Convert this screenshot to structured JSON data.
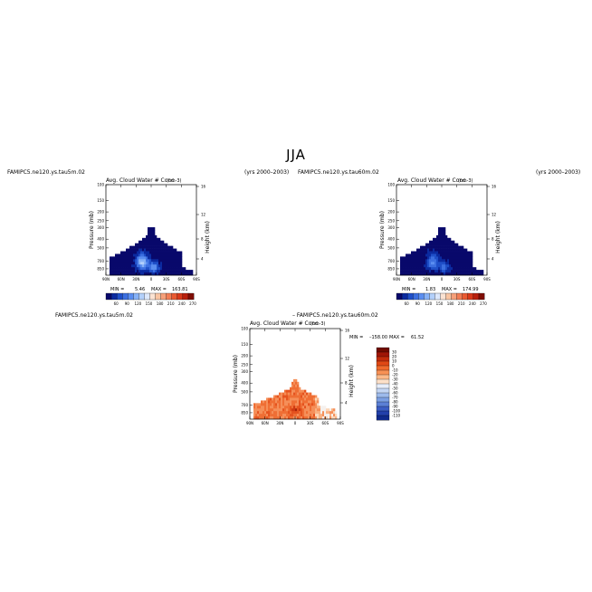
{
  "page": {
    "title": "JJA"
  },
  "panels": [
    {
      "case_name": "FAMIPC5.ne120.ys.tau5m.02",
      "years": "(yrs 2000–2003)",
      "plot_title": "Avg. Cloud Water # Conc",
      "units": "(cm-3)",
      "ylabel": "Pressure (mb)",
      "ylabel_right": "Height (km)",
      "stats": {
        "min_label": "MIN =",
        "min": "5.46",
        "max_label": "MAX =",
        "max": "163.81"
      }
    },
    {
      "case_name": "FAMIPC5.ne120.ys.tau60m.02",
      "years": "(yrs 2000–2003)",
      "plot_title": "Avg. Cloud Water # Conc",
      "units": "(cm-3)",
      "ylabel": "Pressure (mb)",
      "ylabel_right": "Height (km)",
      "stats": {
        "min_label": "MIN =",
        "min": "1.83",
        "max_label": "MAX =",
        "max": "174.99"
      }
    },
    {
      "case_name": "FAMIPC5.ne120.ys.tau5m.02",
      "diff_label": "– FAMIPC5.ne120.ys.tau60m.02",
      "plot_title": "Avg. Cloud Water # Conc",
      "units": "(cm-3)",
      "ylabel": "Pressure (mb)",
      "ylabel_right": "Height (km)",
      "stats": {
        "min_label": "MIN =",
        "min": "–158.00",
        "max_label": "MAX =",
        "max": "61.52"
      }
    }
  ],
  "colors": {
    "blues": [
      "#08086b",
      "#0b2aa0",
      "#1f4fc8",
      "#3c6fe0",
      "#5b8ef0",
      "#86b1f7",
      "#b3d0fb",
      "#dde8fc"
    ],
    "reds": [
      "#fbe3d3",
      "#f9c4a2",
      "#f6a07a",
      "#f27d55",
      "#e95a32",
      "#d8391a",
      "#b81f0c",
      "#7f0d04"
    ],
    "diff_levels": [
      "#700b00",
      "#a01606",
      "#c22c0b",
      "#e04814",
      "#f06a2c",
      "#f89155",
      "#fcb98a",
      "#fde0c8",
      "#e7eefb",
      "#c4d6f4",
      "#9dbaec",
      "#7b9fe3",
      "#5b80d6",
      "#3b5dc4",
      "#2240ab",
      "#0f2a8c"
    ]
  },
  "chart_data": [
    {
      "type": "heatmap",
      "title": "Avg. Cloud Water # Conc",
      "x": {
        "ticks": [
          "90N",
          "60N",
          "30N",
          "0",
          "30S",
          "60S",
          "90S"
        ],
        "range": [
          "90N",
          "90S"
        ]
      },
      "y": {
        "label": "Pressure (mb)",
        "ticks": [
          100,
          150,
          200,
          250,
          300,
          400,
          500,
          700,
          850
        ],
        "range": [
          100,
          1000
        ],
        "scale": "log"
      },
      "y_right": {
        "label": "Height (km)",
        "ticks": [
          16,
          12,
          8,
          4
        ]
      },
      "colorbar": {
        "orientation": "horizontal",
        "levels": [
          60,
          90,
          120,
          150,
          180,
          210,
          240,
          270
        ]
      },
      "min": 5.46,
      "max": 163.81
    },
    {
      "type": "heatmap",
      "title": "Avg. Cloud Water # Conc",
      "x": {
        "ticks": [
          "90N",
          "60N",
          "30N",
          "0",
          "30S",
          "60S",
          "90S"
        ],
        "range": [
          "90N",
          "90S"
        ]
      },
      "y": {
        "label": "Pressure (mb)",
        "ticks": [
          100,
          150,
          200,
          250,
          300,
          400,
          500,
          700,
          850
        ],
        "range": [
          100,
          1000
        ],
        "scale": "log"
      },
      "y_right": {
        "label": "Height (km)",
        "ticks": [
          16,
          12,
          8,
          4
        ]
      },
      "colorbar": {
        "orientation": "horizontal",
        "levels": [
          60,
          90,
          120,
          150,
          180,
          210,
          240,
          270
        ]
      },
      "min": 1.83,
      "max": 174.99
    },
    {
      "type": "heatmap",
      "title": "Avg. Cloud Water # Conc",
      "x": {
        "ticks": [
          "90N",
          "60N",
          "30N",
          "0",
          "30S",
          "60S",
          "90S"
        ],
        "range": [
          "90N",
          "90S"
        ]
      },
      "y": {
        "label": "Pressure (mb)",
        "ticks": [
          100,
          150,
          200,
          250,
          300,
          400,
          500,
          700,
          850
        ],
        "range": [
          100,
          1000
        ],
        "scale": "log"
      },
      "y_right": {
        "label": "Height (km)",
        "ticks": [
          16,
          12,
          8,
          4
        ]
      },
      "colorbar": {
        "orientation": "vertical",
        "levels": [
          30,
          20,
          10,
          0,
          -10,
          -20,
          -30,
          -40,
          -50,
          -60,
          -70,
          -80,
          -90,
          -100,
          -110
        ]
      },
      "min": -158.0,
      "max": 61.52
    }
  ]
}
